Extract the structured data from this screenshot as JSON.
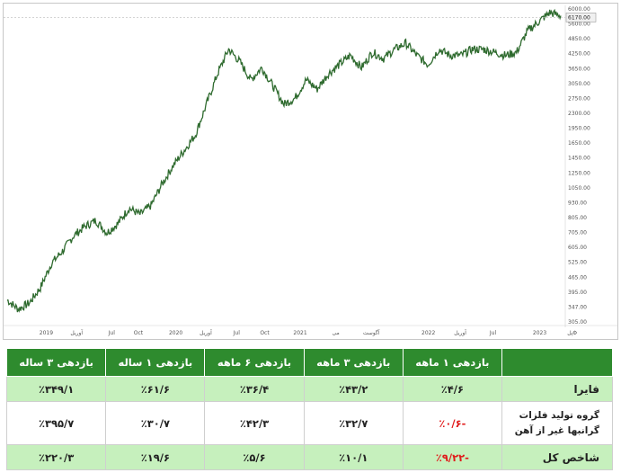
{
  "chart_data": {
    "type": "line",
    "line_color": "#2f6b2f",
    "last_value_label": "6170.00",
    "y_ticks": [
      "6000.00",
      "5600.00",
      "4850.00",
      "4250.00",
      "3650.00",
      "3050.00",
      "2750.00",
      "2300.00",
      "1950.00",
      "1650.00",
      "1450.00",
      "1250.00",
      "1050.00",
      "930.00",
      "805.00",
      "705.00",
      "605.00",
      "525.00",
      "465.00",
      "395.00",
      "347.00",
      "305.00"
    ],
    "x_ticks": [
      {
        "label": "2019",
        "pos": 0.045
      },
      {
        "label": "آوریل",
        "pos": 0.11
      },
      {
        "label": "Jul",
        "pos": 0.185
      },
      {
        "label": "Oct",
        "pos": 0.242
      },
      {
        "label": "2020",
        "pos": 0.322
      },
      {
        "label": "آوریل",
        "pos": 0.386
      },
      {
        "label": "Jul",
        "pos": 0.452
      },
      {
        "label": "Oct",
        "pos": 0.512
      },
      {
        "label": "2021",
        "pos": 0.588
      },
      {
        "label": "می",
        "pos": 0.664
      },
      {
        "label": "آگوست",
        "pos": 0.74
      },
      {
        "label": "2022",
        "pos": 0.862
      },
      {
        "label": "آوریل",
        "pos": 0.93
      },
      {
        "label": "Jul",
        "pos": 1.0
      },
      {
        "label": "2023",
        "pos": 1.1
      },
      {
        "label": "پل",
        "pos": 1.165
      }
    ],
    "x": [
      0,
      0.02,
      0.04,
      0.06,
      0.08,
      0.1,
      0.12,
      0.14,
      0.16,
      0.18,
      0.2,
      0.22,
      0.24,
      0.26,
      0.28,
      0.3,
      0.32,
      0.34,
      0.36,
      0.38,
      0.4,
      0.42,
      0.44,
      0.46,
      0.48,
      0.5,
      0.52,
      0.54,
      0.56,
      0.58,
      0.6,
      0.62,
      0.64,
      0.66,
      0.68,
      0.7,
      0.72,
      0.74,
      0.76,
      0.78,
      0.8,
      0.82,
      0.84,
      0.86,
      0.88,
      0.9,
      0.92,
      0.94,
      0.96,
      0.98,
      1.0
    ],
    "values": [
      0.06,
      0.03,
      0.05,
      0.1,
      0.18,
      0.22,
      0.27,
      0.3,
      0.32,
      0.28,
      0.31,
      0.36,
      0.34,
      0.37,
      0.44,
      0.5,
      0.55,
      0.6,
      0.7,
      0.8,
      0.88,
      0.84,
      0.78,
      0.82,
      0.76,
      0.7,
      0.72,
      0.78,
      0.75,
      0.8,
      0.83,
      0.86,
      0.82,
      0.87,
      0.85,
      0.88,
      0.9,
      0.86,
      0.83,
      0.88,
      0.86,
      0.86,
      0.88,
      0.88,
      0.87,
      0.86,
      0.87,
      0.94,
      0.97,
      1.0,
      0.99
    ]
  },
  "table": {
    "headers": [
      "",
      "بازدهی ۱ ماهه",
      "بازدهی ۳ ماهه",
      "بازدهی ۶ ماهه",
      "بازدهی ۱ ساله",
      "بازدهی ۳ ساله"
    ],
    "rows": [
      {
        "name": "فایرا",
        "cells": [
          "٪۴/۶",
          "٪۴۳/۲",
          "٪۳۶/۴",
          "٪۶۱/۶",
          "٪۳۴۹/۱"
        ],
        "neg": [
          false,
          false,
          false,
          false,
          false
        ],
        "style": "light"
      },
      {
        "name": "گروه تولید فلزات گرانبها غیر از آهن",
        "cells": [
          "-٪۰/۶",
          "٪۳۲/۷",
          "٪۴۲/۳",
          "٪۳۰/۷",
          "٪۳۹۵/۷"
        ],
        "neg": [
          true,
          false,
          false,
          false,
          false
        ],
        "style": "white"
      },
      {
        "name": "شاخص کل",
        "cells": [
          "-٪۹/۲۲",
          "٪۱۰/۱",
          "٪۵/۶",
          "٪۱۹/۶",
          "٪۲۲۰/۳"
        ],
        "neg": [
          true,
          false,
          false,
          false,
          false
        ],
        "style": "light"
      }
    ]
  }
}
